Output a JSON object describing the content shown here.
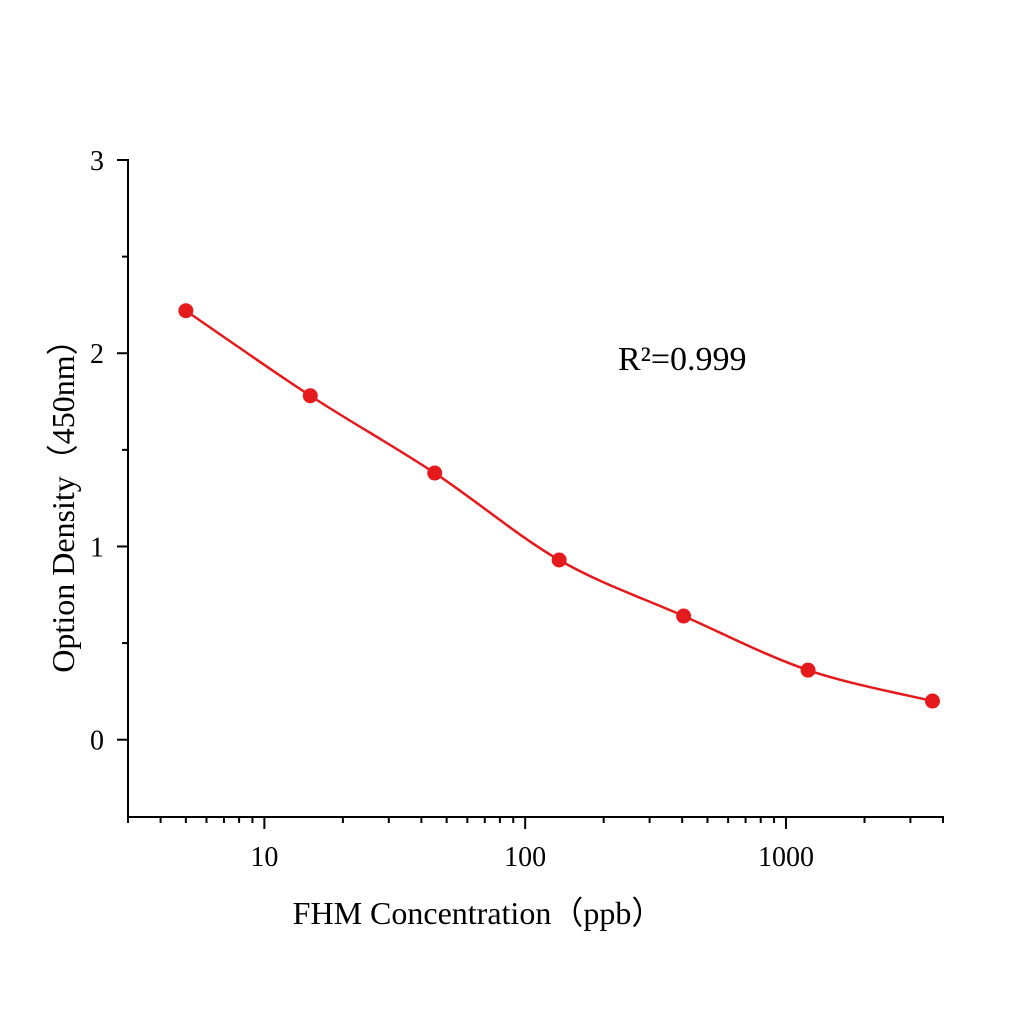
{
  "chart_data": {
    "type": "scatter",
    "x_label": "FHM Concentration（ppb）",
    "y_label": "Option Density（450nm）",
    "annotation": "R²=0.999",
    "x": [
      5,
      15,
      45,
      135,
      405,
      1215,
      3645
    ],
    "series": [
      {
        "color": "#e41a1c",
        "values": [
          2.22,
          1.78,
          1.38,
          0.93,
          0.64,
          0.36,
          0.2
        ]
      }
    ],
    "xlim": [
      3,
      4000
    ],
    "xticks": [
      10,
      100,
      1000
    ],
    "x_log": true,
    "ylim": [
      -0.4,
      3
    ],
    "yticks": [
      0,
      1,
      2,
      3
    ],
    "fit_line": true
  }
}
